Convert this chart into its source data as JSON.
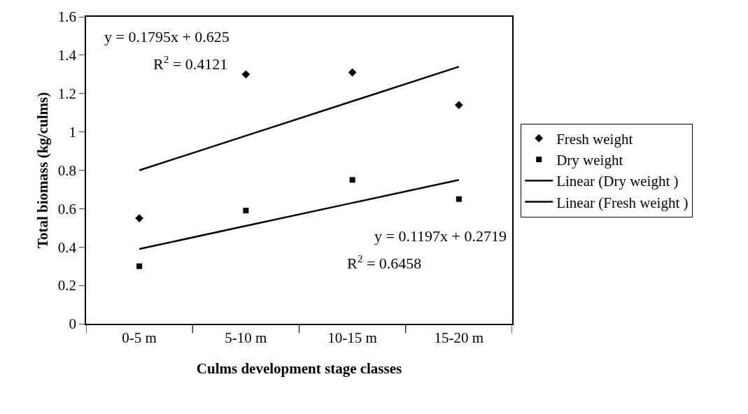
{
  "chart_data": {
    "type": "scatter",
    "xlabel": "Culms development stage classes",
    "ylabel": "Total biomass (kg/culms)",
    "categories": [
      "0-5 m",
      "5-10 m",
      "10-15 m",
      "15-20 m"
    ],
    "series": [
      {
        "name": "Fresh weight",
        "marker": "diamond",
        "color": "#000000",
        "values": [
          0.55,
          1.3,
          1.31,
          1.14
        ]
      },
      {
        "name": "Dry weight",
        "marker": "square",
        "color": "#000000",
        "values": [
          0.3,
          0.59,
          0.75,
          0.65
        ]
      },
      {
        "name": "Linear (Dry weight )",
        "type": "line",
        "marker": "none",
        "line_style": "solid",
        "color": "#000000",
        "values": [
          0.39,
          0.51,
          0.63,
          0.75
        ]
      },
      {
        "name": "Linear (Fresh weight )",
        "type": "line",
        "marker": "none",
        "line_style": "solid",
        "color": "#000000",
        "values": [
          0.8,
          0.98,
          1.16,
          1.34
        ]
      }
    ],
    "ylim": [
      0,
      1.6
    ],
    "yticks": [
      0,
      0.2,
      0.4,
      0.6,
      0.8,
      1,
      1.2,
      1.4,
      1.6
    ],
    "legend": "right",
    "annotations": [
      "y = 0.1795x + 0.625",
      "R$^{2}$ = 0.4121",
      "y = 0.1197x + 0.2719",
      "R$^{2}$ = 0.6458"
    ]
  }
}
